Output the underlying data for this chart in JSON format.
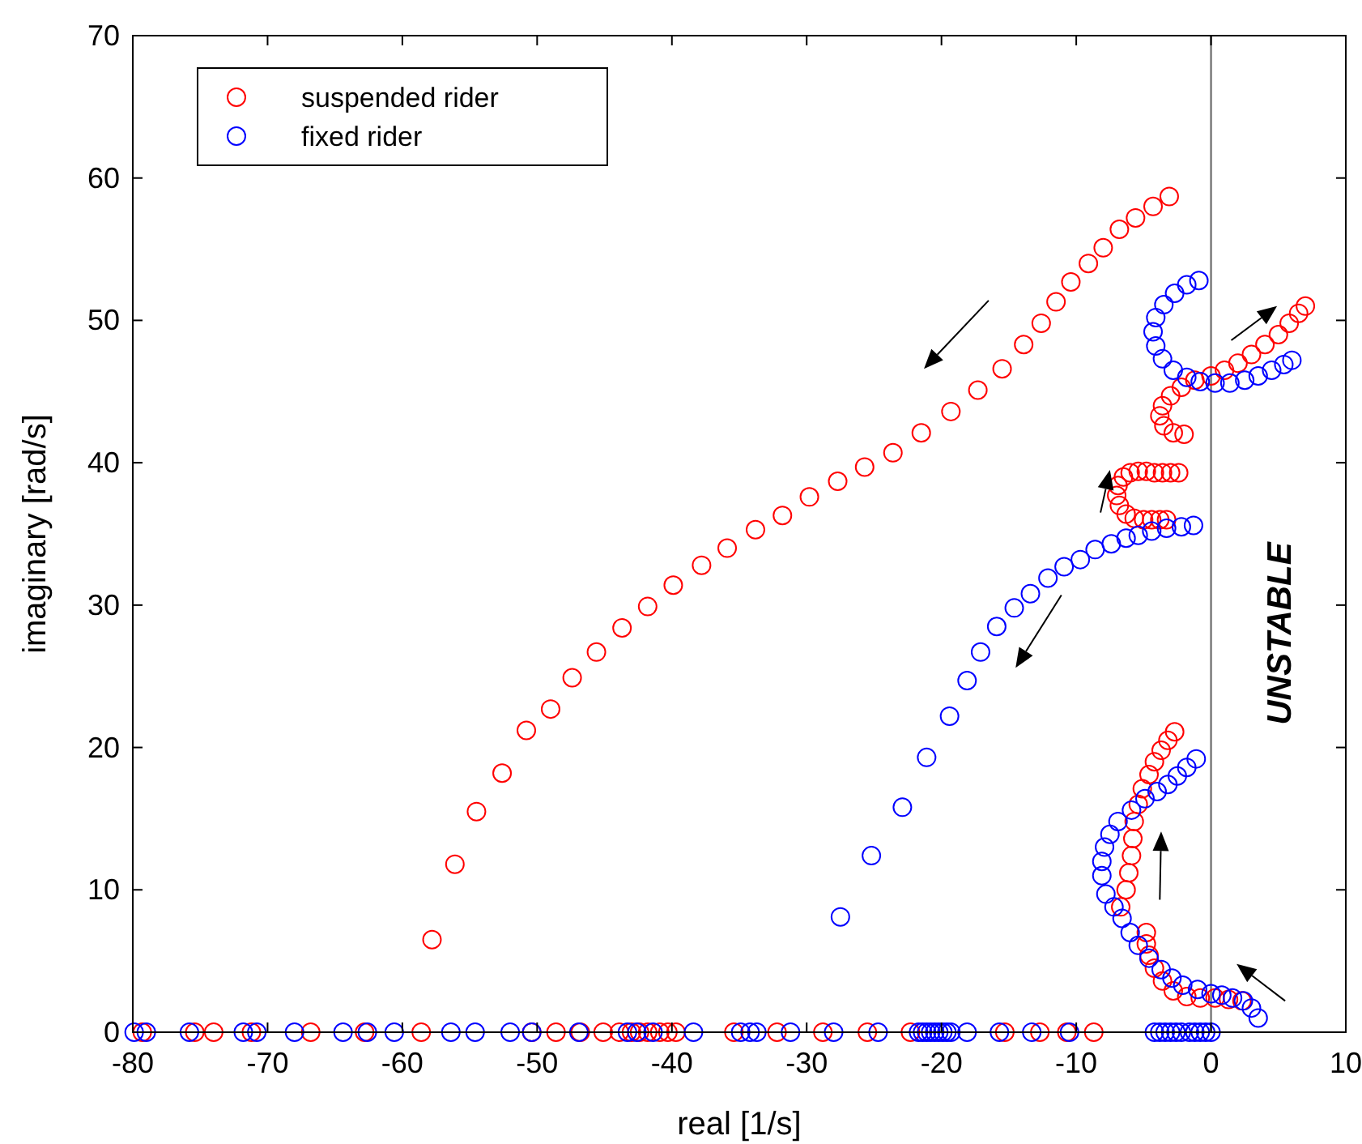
{
  "chart_data": {
    "type": "scatter",
    "xlabel": "real [1/s]",
    "ylabel": "imaginary [rad/s]",
    "xlim": [
      -80,
      10
    ],
    "xticks": [
      -80,
      -70,
      -60,
      -50,
      -40,
      -30,
      -20,
      -10,
      0,
      10
    ],
    "ylim": [
      0,
      70
    ],
    "yticks": [
      0,
      10,
      20,
      30,
      40,
      50,
      60,
      70
    ],
    "grid": false,
    "legend": "top left",
    "marker": "circle",
    "ref_lines": [
      {
        "axis": "x",
        "value": 0,
        "color": "#808080"
      }
    ],
    "annotations": [
      "UNSTABLE"
    ],
    "series": [
      {
        "name": "suspended rider",
        "color": "#ff0000",
        "x": [
          -57.8,
          -56.1,
          -54.5,
          -52.6,
          -50.8,
          -49.0,
          -47.4,
          -45.6,
          -43.7,
          -41.8,
          -39.9,
          -37.8,
          -35.9,
          -33.8,
          -31.8,
          -29.8,
          -27.7,
          -25.7,
          -23.6,
          -21.5,
          -19.3,
          -17.3,
          -15.5,
          -13.9,
          -12.6,
          -11.5,
          -10.4,
          -9.1,
          -8.0,
          -6.8,
          -5.6,
          -4.3,
          -3.1,
          -2.4,
          -3.0,
          -3.6,
          -4.2,
          -4.8,
          -5.4,
          -6.0,
          -6.5,
          -6.9,
          -7.0,
          -6.8,
          -6.3,
          -5.7,
          -5.0,
          -4.4,
          -3.8,
          -3.3,
          -2.0,
          -2.8,
          -3.5,
          -3.8,
          -3.6,
          -3.0,
          -2.2,
          -1.2,
          0,
          1,
          2,
          3,
          4,
          5,
          5.8,
          6.5,
          7.0,
          -2.7,
          -3.2,
          -3.7,
          -4.2,
          -4.6,
          -5.1,
          -5.4,
          -5.7,
          -5.8,
          -5.9,
          -6.1,
          -6.3,
          -6.7,
          -4.8,
          -4.8,
          -4.6,
          -4.2,
          -3.6,
          -2.8,
          -1.8,
          -0.8,
          0.3,
          1.3,
          2.3,
          -79.3,
          -75.4,
          -74.0,
          -71.2,
          -66.8,
          -62.8,
          -58.6,
          -50.4,
          -48.6,
          -46.8,
          -45.1,
          -43.9,
          -43.0,
          -42.4,
          -41.8,
          -40.9,
          -40.3,
          -39.7,
          -35.4,
          -32.2,
          -28.8,
          -25.5,
          -22.3,
          -15.3,
          -12.7,
          -10.7,
          -8.7
        ],
        "values": [
          6.5,
          11.8,
          15.5,
          18.2,
          21.2,
          22.7,
          24.9,
          26.7,
          28.4,
          29.9,
          31.4,
          32.8,
          34.0,
          35.3,
          36.3,
          37.6,
          38.7,
          39.7,
          40.7,
          42.1,
          43.6,
          45.1,
          46.6,
          48.3,
          49.8,
          51.3,
          52.7,
          54.0,
          55.1,
          56.4,
          57.2,
          58.0,
          58.7,
          39.3,
          39.3,
          39.3,
          39.3,
          39.4,
          39.4,
          39.3,
          39.0,
          38.4,
          37.7,
          37.0,
          36.4,
          36.1,
          36.0,
          36.0,
          36.0,
          36.0,
          42.0,
          42.1,
          42.6,
          43.3,
          44.0,
          44.7,
          45.3,
          45.8,
          46.1,
          46.5,
          47.0,
          47.6,
          48.3,
          49.0,
          49.8,
          50.5,
          51.0,
          21.1,
          20.5,
          19.8,
          19.0,
          18.1,
          17.1,
          16.0,
          14.8,
          13.6,
          12.4,
          11.2,
          10.0,
          8.8,
          7.0,
          6.2,
          5.4,
          4.5,
          3.6,
          2.9,
          2.5,
          2.4,
          2.4,
          2.3,
          2.2,
          0,
          0,
          0,
          0,
          0,
          0,
          0,
          0,
          0,
          0,
          0,
          0,
          0,
          0,
          0,
          0,
          0,
          0,
          0,
          0,
          0,
          0,
          0,
          0,
          0,
          0,
          0
        ]
      },
      {
        "name": "fixed rider",
        "color": "#0000ff",
        "x": [
          -27.5,
          -25.2,
          -22.9,
          -21.1,
          -19.4,
          -18.1,
          -17.1,
          -15.9,
          -14.6,
          -13.4,
          -12.1,
          -10.9,
          -9.7,
          -8.6,
          -7.4,
          -6.3,
          -5.4,
          -4.4,
          -3.3,
          -2.2,
          -1.3,
          -0.9,
          -1.8,
          -2.7,
          -3.5,
          -4.1,
          -4.3,
          -4.1,
          -3.6,
          -2.8,
          -1.8,
          -0.8,
          0.3,
          1.4,
          2.5,
          3.5,
          4.5,
          5.4,
          6.0,
          -1.1,
          -1.8,
          -2.5,
          -3.2,
          -4.0,
          -4.9,
          -5.9,
          -6.9,
          -7.5,
          -7.9,
          -8.1,
          -8.1,
          -7.8,
          -7.2,
          -6.6,
          -6.0,
          -5.4,
          -4.6,
          -3.7,
          -2.9,
          -2.1,
          -1.0,
          0,
          0.8,
          1.6,
          2.4,
          3.0,
          3.5,
          -79.9,
          -79.0,
          -75.8,
          -71.8,
          -70.8,
          -68.0,
          -64.4,
          -62.6,
          -60.6,
          -56.4,
          -54.6,
          -52.0,
          -50.4,
          -46.9,
          -43.3,
          -42.6,
          -41.4,
          -38.4,
          -34.9,
          -33.7,
          -34.2,
          -31.2,
          -28.0,
          -24.7,
          -21.7,
          -21.4,
          -21.1,
          -20.8,
          -20.5,
          -20.2,
          -19.9,
          -19.6,
          -19.3,
          -18.1,
          -15.7,
          -13.3,
          -10.5,
          -4.2,
          -3.8,
          -3.4,
          -3.0,
          -2.6,
          -2.2,
          -1.6,
          -1.2,
          -0.8,
          -0.4,
          0
        ],
        "values": [
          8.1,
          12.4,
          15.8,
          19.3,
          22.2,
          24.7,
          26.7,
          28.5,
          29.8,
          30.8,
          31.9,
          32.7,
          33.2,
          33.9,
          34.3,
          34.7,
          34.9,
          35.2,
          35.4,
          35.5,
          35.6,
          52.8,
          52.5,
          51.9,
          51.1,
          50.2,
          49.2,
          48.2,
          47.3,
          46.5,
          46.0,
          45.7,
          45.6,
          45.6,
          45.8,
          46.1,
          46.5,
          46.9,
          47.2,
          19.2,
          18.6,
          18.0,
          17.4,
          16.9,
          16.4,
          15.6,
          14.8,
          13.9,
          13.0,
          12.0,
          11.0,
          9.7,
          8.8,
          8.0,
          7.0,
          6.1,
          5.2,
          4.4,
          3.8,
          3.3,
          3.0,
          2.7,
          2.6,
          2.4,
          2.2,
          1.7,
          1.0,
          0,
          0,
          0,
          0,
          0,
          0,
          0,
          0,
          0,
          0,
          0,
          0,
          0,
          0,
          0,
          0,
          0,
          0,
          0,
          0,
          0,
          0,
          0,
          0,
          0,
          0,
          0,
          0,
          0,
          0,
          0,
          0,
          0,
          0,
          0,
          0,
          0,
          0,
          0,
          0,
          0,
          0,
          0,
          0,
          0,
          0,
          0,
          0
        ]
      }
    ]
  }
}
